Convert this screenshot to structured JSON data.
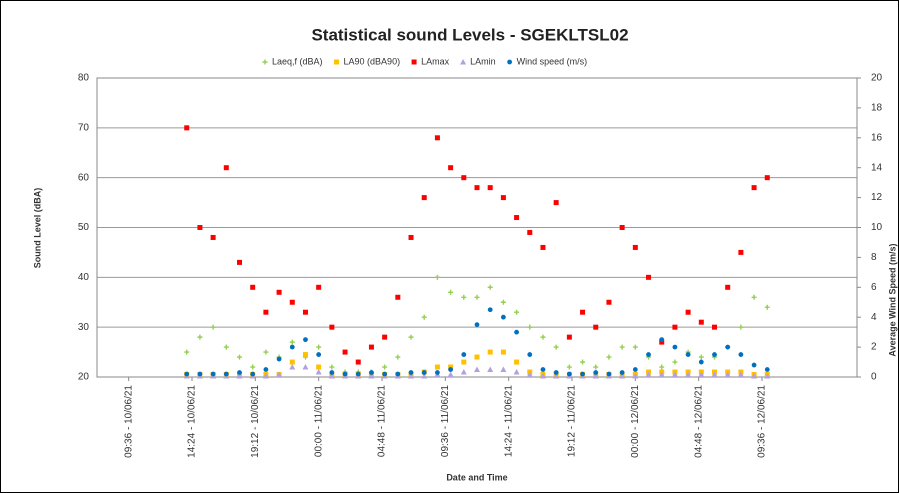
{
  "chart_data": {
    "type": "scatter",
    "title": "Statistical sound Levels - SGEKLTSL02",
    "xlabel": "Date and Time",
    "ylabel": "Sound Level (dBA)",
    "y2label": "Average Wind Speed (m/s)",
    "ylim": [
      20,
      80
    ],
    "yticks": [
      20,
      30,
      40,
      50,
      60,
      70,
      80
    ],
    "y2lim": [
      0,
      20
    ],
    "y2ticks": [
      0,
      2,
      4,
      6,
      8,
      10,
      12,
      14,
      16,
      18,
      20
    ],
    "xlim": [
      "10/06/21 07:12",
      "12/06/21 16:48"
    ],
    "xticks": [
      {
        "value": "10/06/21 09:36",
        "label": "09:36 - 10/06/21"
      },
      {
        "value": "10/06/21 14:24",
        "label": "14:24 - 10/06/21"
      },
      {
        "value": "10/06/21 19:12",
        "label": "19:12 - 10/06/21"
      },
      {
        "value": "11/06/21 00:00",
        "label": "00:00 - 11/06/21"
      },
      {
        "value": "11/06/21 04:48",
        "label": "04:48 - 11/06/21"
      },
      {
        "value": "11/06/21 09:36",
        "label": "09:36 - 11/06/21"
      },
      {
        "value": "11/06/21 14:24",
        "label": "14:24 - 11/06/21"
      },
      {
        "value": "11/06/21 19:12",
        "label": "19:12 - 11/06/21"
      },
      {
        "value": "12/06/21 00:00",
        "label": "00:00 - 12/06/21"
      },
      {
        "value": "12/06/21 04:48",
        "label": "04:48 - 12/06/21"
      },
      {
        "value": "12/06/21 09:36",
        "label": "09:36 - 12/06/21"
      }
    ],
    "grid": true,
    "legend": "top",
    "x": [
      "10/06/21 14:00",
      "10/06/21 15:00",
      "10/06/21 16:00",
      "10/06/21 17:00",
      "10/06/21 18:00",
      "10/06/21 19:00",
      "10/06/21 20:00",
      "10/06/21 21:00",
      "10/06/21 22:00",
      "10/06/21 23:00",
      "11/06/21 00:00",
      "11/06/21 01:00",
      "11/06/21 02:00",
      "11/06/21 03:00",
      "11/06/21 04:00",
      "11/06/21 05:00",
      "11/06/21 06:00",
      "11/06/21 07:00",
      "11/06/21 08:00",
      "11/06/21 09:00",
      "11/06/21 10:00",
      "11/06/21 11:00",
      "11/06/21 12:00",
      "11/06/21 13:00",
      "11/06/21 14:00",
      "11/06/21 15:00",
      "11/06/21 16:00",
      "11/06/21 17:00",
      "11/06/21 18:00",
      "11/06/21 19:00",
      "11/06/21 20:00",
      "11/06/21 21:00",
      "11/06/21 22:00",
      "11/06/21 23:00",
      "12/06/21 00:00",
      "12/06/21 01:00",
      "12/06/21 02:00",
      "12/06/21 03:00",
      "12/06/21 04:00",
      "12/06/21 05:00",
      "12/06/21 06:00",
      "12/06/21 07:00",
      "12/06/21 08:00",
      "12/06/21 09:00",
      "12/06/21 10:00"
    ],
    "series": [
      {
        "name": "Laeq,f (dBA)",
        "color": "#92d050",
        "marker": "plus",
        "values": [
          25,
          28,
          30,
          26,
          24,
          22,
          25,
          24,
          27,
          24,
          26,
          22,
          21,
          21,
          21,
          22,
          24,
          28,
          32,
          40,
          37,
          36,
          36,
          38,
          35,
          33,
          30,
          28,
          26,
          22,
          23,
          22,
          24,
          26,
          26,
          24,
          22,
          23,
          25,
          24,
          24,
          26,
          30,
          36,
          34
        ]
      },
      {
        "name": "LA90  (dBA90)",
        "color": "#ffc000",
        "marker": "square",
        "values": [
          20.5,
          20.5,
          20.5,
          20.5,
          20.5,
          20.5,
          20.5,
          20.5,
          23,
          24.5,
          22,
          20.5,
          20.5,
          20.5,
          20.5,
          20.5,
          20.5,
          20.5,
          21,
          22,
          22,
          23,
          24,
          25,
          25,
          23,
          21,
          20.5,
          20.5,
          20.5,
          20.5,
          20.5,
          20.5,
          20.5,
          20.5,
          21,
          21,
          21,
          21,
          21,
          21,
          21,
          21,
          20.5,
          20.5
        ]
      },
      {
        "name": "LAmax",
        "color": "#ff0000",
        "marker": "square",
        "values": [
          70,
          50,
          48,
          62,
          43,
          38,
          33,
          37,
          35,
          33,
          38,
          30,
          25,
          23,
          26,
          28,
          36,
          48,
          56,
          68,
          62,
          60,
          58,
          58,
          56,
          52,
          49,
          46,
          55,
          28,
          33,
          30,
          35,
          50,
          46,
          40,
          27,
          30,
          33,
          31,
          30,
          38,
          45,
          58,
          60
        ]
      },
      {
        "name": "LAmin",
        "color": "#b4a0e0",
        "marker": "triangle",
        "values": [
          20.2,
          20.2,
          20.2,
          20.2,
          20.2,
          20.2,
          20.2,
          20.5,
          22,
          22,
          21,
          20.2,
          20.2,
          20.2,
          20.2,
          20.2,
          20.2,
          20.2,
          20.2,
          20.5,
          20.5,
          21,
          21.5,
          21.5,
          21.5,
          21,
          20.5,
          20.2,
          20.2,
          20.2,
          20.2,
          20.2,
          20.2,
          20.2,
          20.2,
          20.5,
          20.5,
          20.5,
          20.5,
          20.5,
          20.5,
          20.5,
          20.5,
          20.2,
          20.2
        ]
      },
      {
        "name": "Wind speed (m/s)",
        "color": "#0070c0",
        "marker": "circle",
        "axis": "y2",
        "values": [
          0.2,
          0.2,
          0.2,
          0.2,
          0.3,
          0.2,
          0.5,
          1.2,
          2,
          2.5,
          1.5,
          0.3,
          0.2,
          0.2,
          0.3,
          0.2,
          0.2,
          0.3,
          0.3,
          0.3,
          0.5,
          1.5,
          3.5,
          4.5,
          4,
          3,
          1.5,
          0.5,
          0.3,
          0.2,
          0.2,
          0.3,
          0.2,
          0.3,
          0.5,
          1.5,
          2.5,
          2,
          1.5,
          1,
          1.5,
          2,
          1.5,
          0.8,
          0.5
        ]
      }
    ]
  }
}
